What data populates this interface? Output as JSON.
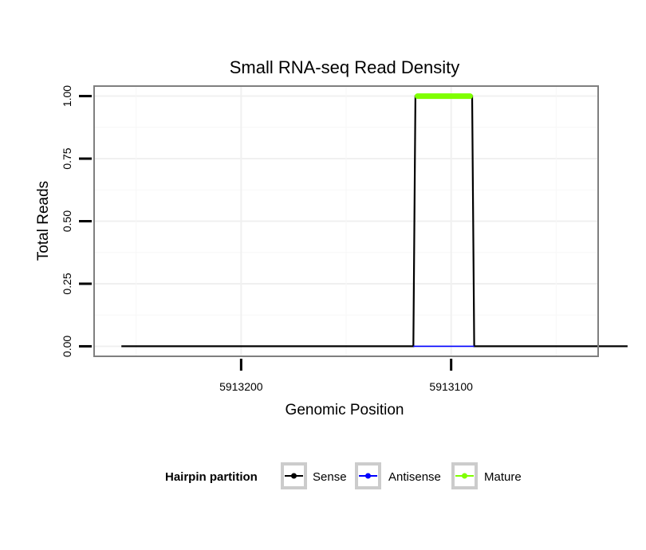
{
  "chart_data": {
    "type": "line",
    "title": "Small RNA-seq Read Density",
    "xlabel": "Genomic Position",
    "ylabel": "Total Reads",
    "x_reversed": true,
    "xlim": [
      5913270,
      5913030
    ],
    "ylim": [
      -0.04,
      1.04
    ],
    "x_ticks": [
      {
        "value": 5913200,
        "label": "5913200"
      },
      {
        "value": 5913100,
        "label": "5913100"
      }
    ],
    "y_ticks": [
      {
        "value": 0.0,
        "label": "0.00"
      },
      {
        "value": 0.25,
        "label": "0.25"
      },
      {
        "value": 0.5,
        "label": "0.50"
      },
      {
        "value": 0.75,
        "label": "0.75"
      },
      {
        "value": 1.0,
        "label": "1.00"
      }
    ],
    "grid": true,
    "legend_position": "bottom",
    "legend_title": "Hairpin partition",
    "series": [
      {
        "name": "Sense",
        "color": "#000000",
        "points": [
          [
            5913257,
            0
          ],
          [
            5913118,
            0
          ],
          [
            5913117,
            1
          ],
          [
            5913090,
            1
          ],
          [
            5913089,
            0
          ],
          [
            5913016,
            0
          ]
        ]
      },
      {
        "name": "Antisense",
        "color": "#0000ff",
        "points": [
          [
            5913118,
            0
          ],
          [
            5913089,
            0
          ]
        ]
      },
      {
        "name": "Mature",
        "color": "#7fff00",
        "points": [
          [
            5913116,
            1
          ],
          [
            5913091,
            1
          ]
        ]
      }
    ]
  }
}
